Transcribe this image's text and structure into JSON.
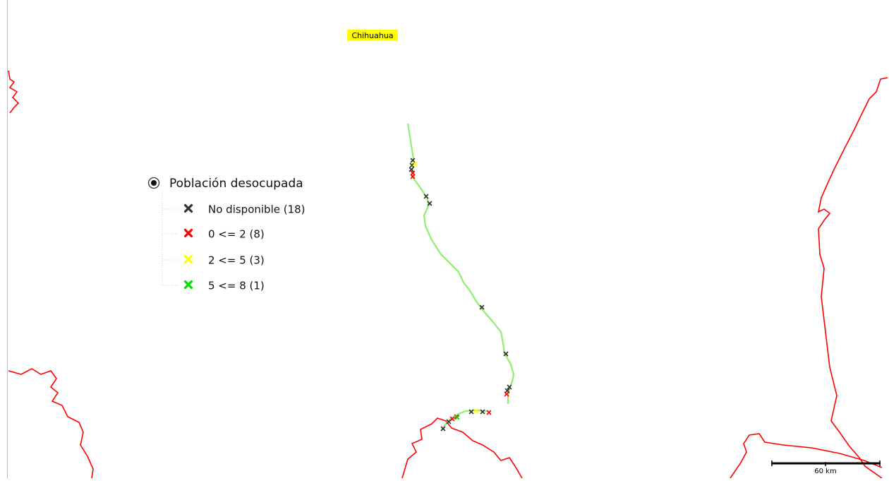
{
  "map": {
    "place_label": "Chihuahua",
    "legend": {
      "title": "Población desocupada",
      "items": [
        {
          "label": "No disponible (18)",
          "color": "#333333"
        },
        {
          "label": "0 <= 2 (8)",
          "color": "#ff0000"
        },
        {
          "label": "2 <= 5 (3)",
          "color": "#ffff00"
        },
        {
          "label": "5 <= 8 (1)",
          "color": "#00dd00"
        }
      ]
    },
    "scale_label": "60 km"
  }
}
